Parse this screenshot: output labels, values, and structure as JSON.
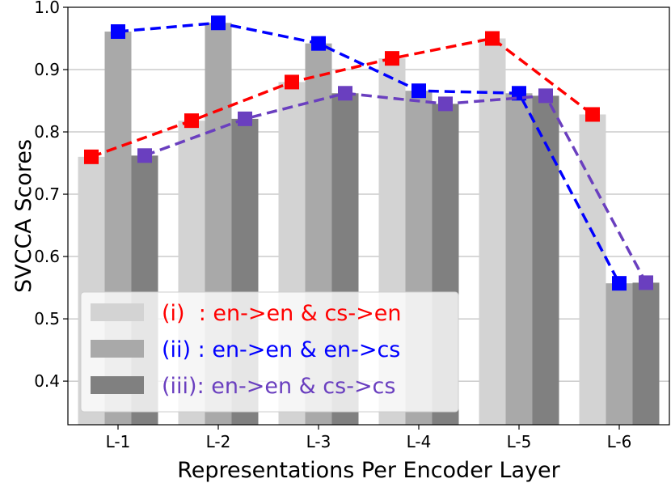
{
  "chart_data": {
    "type": "bar",
    "categories": [
      "L-1",
      "L-2",
      "L-3",
      "L-4",
      "L-5",
      "L-6"
    ],
    "xlabel": "Representations Per Encoder Layer",
    "ylabel": "SVCCA Scores",
    "ylim": [
      0.33,
      1.0
    ],
    "yticks": [
      "0.4",
      "0.5",
      "0.6",
      "0.7",
      "0.8",
      "0.9",
      "1.0"
    ],
    "grid": true,
    "legend_position": "lower-left",
    "series": [
      {
        "name": "(i)  : en->en & cs->en",
        "bar_color": "#d3d3d3",
        "line_color": "#ff0000",
        "values": [
          0.76,
          0.818,
          0.88,
          0.918,
          0.95,
          0.828
        ]
      },
      {
        "name": "(ii) : en->en & en->cs",
        "bar_color": "#a9a9a9",
        "line_color": "#0000ff",
        "values": [
          0.961,
          0.975,
          0.942,
          0.866,
          0.862,
          0.557
        ]
      },
      {
        "name": "(iii): en->en & cs->cs",
        "bar_color": "#808080",
        "line_color": "#6a3fbf",
        "values": [
          0.762,
          0.821,
          0.862,
          0.845,
          0.858,
          0.558
        ]
      }
    ]
  }
}
